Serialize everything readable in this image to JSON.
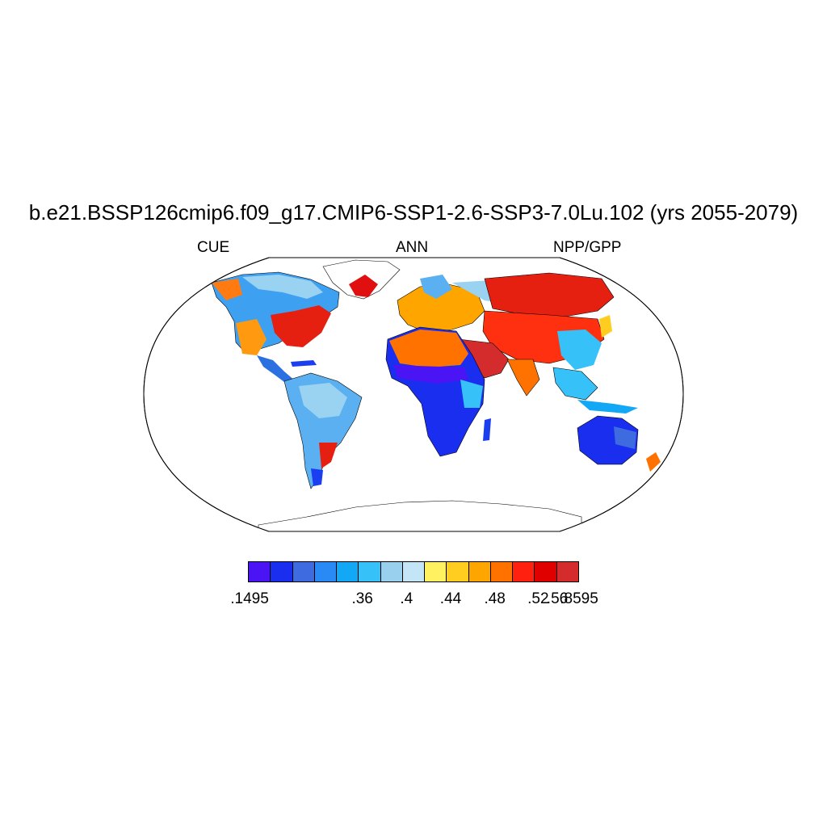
{
  "title": "b.e21.BSSP126cmip6.f09_g17.CMIP6-SSP1-2.6-SSP3-7.0Lu.102 (yrs 2055-2079)",
  "left_label": "CUE",
  "center_label": "ANN",
  "right_label": "NPP/GPP",
  "colorbar": {
    "colors": [
      "#4a14f5",
      "#1a2ef0",
      "#3f6be0",
      "#2a8af5",
      "#12a8f5",
      "#36c2f8",
      "#99d0ee",
      "#c4e4f7",
      "#fff160",
      "#ffcc20",
      "#ffa500",
      "#ff7200",
      "#ff2010",
      "#e00000",
      "#d42c2c"
    ],
    "labels": [
      ".1495",
      ".36",
      ".4",
      ".44",
      ".48",
      ".52",
      ".56",
      ".8595"
    ]
  },
  "map": {
    "projection": "Robinson",
    "variable": "CUE (NPP/GPP)",
    "regions": [
      {
        "name": "North America west",
        "level": "mixed blue/orange"
      },
      {
        "name": "Eastern United States",
        "level": "red"
      },
      {
        "name": "Canada",
        "level": "light blue"
      },
      {
        "name": "Greenland coast",
        "level": "red"
      },
      {
        "name": "Central America & Caribbean",
        "level": "blue"
      },
      {
        "name": "Amazon",
        "level": "light blue"
      },
      {
        "name": "Southern South America",
        "level": "mixed blue/red"
      },
      {
        "name": "Europe",
        "level": "orange"
      },
      {
        "name": "Scandinavia & northern Russia",
        "level": "light blue"
      },
      {
        "name": "Siberia",
        "level": "red"
      },
      {
        "name": "Central & East Asia",
        "level": "red/orange"
      },
      {
        "name": "Arabian Peninsula & Middle East",
        "level": "dark red"
      },
      {
        "name": "Sahel",
        "level": "red/blue"
      },
      {
        "name": "Central & southern Africa",
        "level": "blue"
      },
      {
        "name": "Southeast Asia",
        "level": "light blue"
      },
      {
        "name": "Australia",
        "level": "blue"
      },
      {
        "name": "New Zealand",
        "level": "orange"
      }
    ]
  }
}
